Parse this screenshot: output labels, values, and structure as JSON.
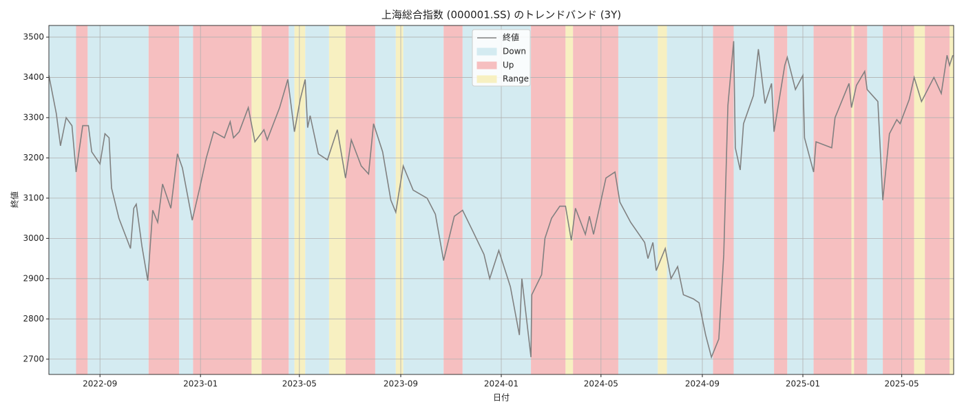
{
  "chart_data": {
    "type": "line",
    "title": "上海総合指数 (000001.SS) のトレンドバンド (3Y)",
    "xlabel": "日付",
    "ylabel": "終値",
    "legend": "upper center",
    "grid": true,
    "xlim": [
      "2022-07-01",
      "2025-07-03"
    ],
    "xticks": [
      {
        "value": "2022-09-01",
        "label": "2022-09"
      },
      {
        "value": "2023-01-01",
        "label": "2023-01"
      },
      {
        "value": "2023-05-01",
        "label": "2023-05"
      },
      {
        "value": "2023-09-01",
        "label": "2023-09"
      },
      {
        "value": "2024-01-01",
        "label": "2024-01"
      },
      {
        "value": "2024-05-01",
        "label": "2024-05"
      },
      {
        "value": "2024-09-01",
        "label": "2024-09"
      },
      {
        "value": "2025-01-01",
        "label": "2025-01"
      },
      {
        "value": "2025-05-01",
        "label": "2025-05"
      }
    ],
    "ylim": [
      2662,
      3529
    ],
    "yticks": [
      2700,
      2800,
      2900,
      3000,
      3100,
      3200,
      3300,
      3400,
      3500
    ],
    "x": [
      "2022-07-01",
      "2022-07-10",
      "2022-07-15",
      "2022-07-22",
      "2022-07-29",
      "2022-08-03",
      "2022-08-11",
      "2022-08-18",
      "2022-08-22",
      "2022-09-01",
      "2022-09-07",
      "2022-09-12",
      "2022-09-15",
      "2022-09-24",
      "2022-10-08",
      "2022-10-12",
      "2022-10-15",
      "2022-10-22",
      "2022-10-29",
      "2022-11-04",
      "2022-11-10",
      "2022-11-16",
      "2022-11-26",
      "2022-12-04",
      "2022-12-10",
      "2022-12-22",
      "2022-12-31",
      "2023-01-08",
      "2023-01-17",
      "2023-01-30",
      "2023-02-06",
      "2023-02-10",
      "2023-02-17",
      "2023-02-28",
      "2023-03-08",
      "2023-03-19",
      "2023-03-23",
      "2023-04-07",
      "2023-04-17",
      "2023-04-25",
      "2023-05-02",
      "2023-05-08",
      "2023-05-11",
      "2023-05-14",
      "2023-05-24",
      "2023-06-04",
      "2023-06-16",
      "2023-06-26",
      "2023-07-03",
      "2023-07-15",
      "2023-07-24",
      "2023-07-30",
      "2023-08-10",
      "2023-08-20",
      "2023-08-26",
      "2023-09-04",
      "2023-09-16",
      "2023-10-03",
      "2023-10-13",
      "2023-10-23",
      "2023-11-05",
      "2023-11-15",
      "2023-11-27",
      "2023-12-11",
      "2023-12-18",
      "2023-12-29",
      "2024-01-12",
      "2024-01-23",
      "2024-01-26",
      "2024-02-06",
      "2024-02-07",
      "2024-02-19",
      "2024-02-23",
      "2024-03-02",
      "2024-03-12",
      "2024-03-19",
      "2024-03-26",
      "2024-03-31",
      "2024-04-12",
      "2024-04-17",
      "2024-04-22",
      "2024-05-07",
      "2024-05-18",
      "2024-05-24",
      "2024-06-06",
      "2024-06-23",
      "2024-06-27",
      "2024-07-03",
      "2024-07-07",
      "2024-07-18",
      "2024-07-25",
      "2024-08-02",
      "2024-08-09",
      "2024-08-21",
      "2024-08-28",
      "2024-09-05",
      "2024-09-12",
      "2024-09-21",
      "2024-09-27",
      "2024-10-02",
      "2024-10-09",
      "2024-10-11",
      "2024-10-17",
      "2024-10-21",
      "2024-11-02",
      "2024-11-08",
      "2024-11-16",
      "2024-11-24",
      "2024-11-27",
      "2024-12-10",
      "2024-12-13",
      "2024-12-23",
      "2025-01-01",
      "2025-01-03",
      "2025-01-14",
      "2025-01-17",
      "2025-02-05",
      "2025-02-09",
      "2025-02-26",
      "2025-03-01",
      "2025-03-07",
      "2025-03-17",
      "2025-03-20",
      "2025-04-02",
      "2025-04-08",
      "2025-04-16",
      "2025-04-25",
      "2025-04-29",
      "2025-05-10",
      "2025-05-16",
      "2025-05-25",
      "2025-06-09",
      "2025-06-18",
      "2025-06-25",
      "2025-06-28",
      "2025-07-02"
    ],
    "series": [
      {
        "name": "終値",
        "color": "#808080",
        "values": [
          3405,
          3310,
          3230,
          3300,
          3280,
          3165,
          3280,
          3280,
          3215,
          3185,
          3260,
          3250,
          3125,
          3050,
          2975,
          3075,
          3085,
          2980,
          2895,
          3070,
          3040,
          3135,
          3075,
          3210,
          3175,
          3045,
          3125,
          3200,
          3265,
          3250,
          3290,
          3250,
          3265,
          3325,
          3240,
          3270,
          3245,
          3325,
          3395,
          3265,
          3345,
          3395,
          3275,
          3305,
          3210,
          3195,
          3270,
          3150,
          3245,
          3180,
          3160,
          3285,
          3215,
          3095,
          3065,
          3180,
          3120,
          3100,
          3060,
          2945,
          3055,
          3070,
          3020,
          2960,
          2900,
          2970,
          2880,
          2760,
          2900,
          2705,
          2860,
          2910,
          3000,
          3050,
          3080,
          3080,
          2995,
          3075,
          3010,
          3055,
          3010,
          3150,
          3165,
          3090,
          3040,
          2990,
          2950,
          2990,
          2920,
          2975,
          2900,
          2930,
          2860,
          2850,
          2840,
          2760,
          2705,
          2750,
          2960,
          3330,
          3490,
          3225,
          3170,
          3285,
          3355,
          3470,
          3335,
          3385,
          3265,
          3430,
          3450,
          3370,
          3405,
          3250,
          3165,
          3240,
          3225,
          3300,
          3385,
          3325,
          3380,
          3415,
          3370,
          3340,
          3095,
          3260,
          3295,
          3285,
          3345,
          3400,
          3340,
          3400,
          3360,
          3455,
          3430,
          3455
        ]
      },
      {
        "name": "Down",
        "color": "#d4ebf1",
        "ranges": [
          [
            "2022-07-01",
            "2022-08-03"
          ],
          [
            "2022-08-17",
            "2022-10-30"
          ],
          [
            "2022-12-06",
            "2022-12-23"
          ],
          [
            "2023-04-18",
            "2023-04-25"
          ],
          [
            "2023-05-08",
            "2023-06-06"
          ],
          [
            "2023-08-01",
            "2023-08-26"
          ],
          [
            "2023-09-04",
            "2023-10-23"
          ],
          [
            "2023-11-15",
            "2024-02-06"
          ],
          [
            "2024-05-22",
            "2024-07-09"
          ],
          [
            "2024-07-20",
            "2024-09-14"
          ],
          [
            "2024-10-09",
            "2024-11-27"
          ],
          [
            "2024-12-13",
            "2025-01-14"
          ],
          [
            "2025-03-20",
            "2025-04-08"
          ]
        ]
      },
      {
        "name": "Up",
        "color": "#f6bfc0",
        "ranges": [
          [
            "2022-08-03",
            "2022-08-17"
          ],
          [
            "2022-10-30",
            "2022-12-06"
          ],
          [
            "2022-12-23",
            "2023-03-04"
          ],
          [
            "2023-03-16",
            "2023-04-18"
          ],
          [
            "2023-06-26",
            "2023-08-01"
          ],
          [
            "2023-10-23",
            "2023-11-15"
          ],
          [
            "2024-02-06",
            "2024-03-19"
          ],
          [
            "2024-03-28",
            "2024-05-22"
          ],
          [
            "2024-09-14",
            "2024-10-09"
          ],
          [
            "2024-11-27",
            "2024-12-13"
          ],
          [
            "2025-01-14",
            "2025-03-01"
          ],
          [
            "2025-03-04",
            "2025-03-20"
          ],
          [
            "2025-04-08",
            "2025-05-16"
          ],
          [
            "2025-05-29",
            "2025-06-28"
          ]
        ]
      },
      {
        "name": "Range",
        "color": "#f7f0c1",
        "ranges": [
          [
            "2023-03-04",
            "2023-03-16"
          ],
          [
            "2023-04-25",
            "2023-05-08"
          ],
          [
            "2023-06-06",
            "2023-06-26"
          ],
          [
            "2023-08-26",
            "2023-09-04"
          ],
          [
            "2024-03-19",
            "2024-03-28"
          ],
          [
            "2024-07-09",
            "2024-07-20"
          ],
          [
            "2025-03-01",
            "2025-03-04"
          ],
          [
            "2025-05-16",
            "2025-05-29"
          ],
          [
            "2025-06-28",
            "2025-07-03"
          ]
        ]
      }
    ]
  }
}
